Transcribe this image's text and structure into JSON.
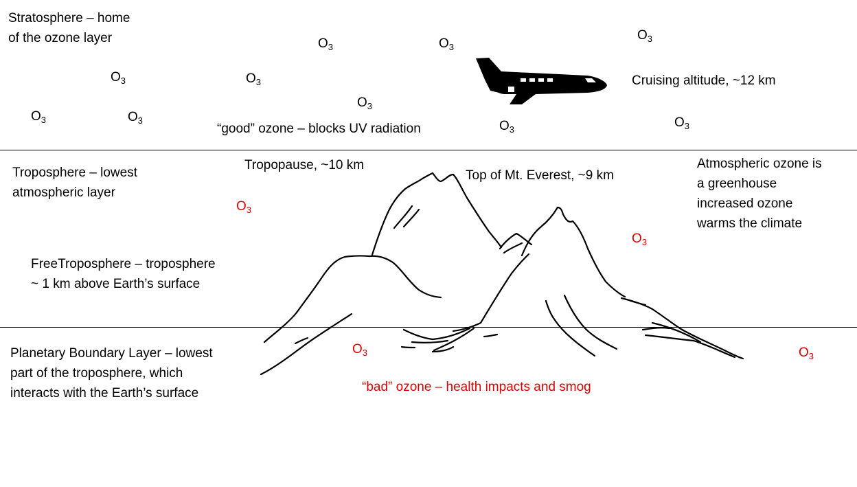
{
  "layers": {
    "stratosphere": {
      "line1": "Stratosphere – home",
      "line2": "of the ozone layer"
    },
    "troposphere": {
      "line1": "Troposphere – lowest",
      "line2": "atmospheric layer"
    },
    "free_troposphere": {
      "line1": "FreeTroposphere – troposphere",
      "line2": "~ 1 km above Earth’s surface"
    },
    "boundary_layer": {
      "line1": "Planetary Boundary Layer – lowest",
      "line2": "part of the troposphere, which",
      "line3": "interacts with the Earth’s surface"
    }
  },
  "annotations": {
    "good_ozone": "“good” ozone – blocks UV radiation",
    "bad_ozone": "“bad” ozone – health impacts and smog",
    "cruising_altitude": "Cruising altitude, ~12 km",
    "tropopause": "Tropopause, ~10 km",
    "everest": "Top of Mt. Everest, ~9 km",
    "greenhouse": {
      "line1": "Atmospheric ozone is",
      "line2": "a greenhouse",
      "line3": "increased ozone",
      "line4": "warms the climate"
    }
  },
  "ozone": {
    "symbol": "O",
    "subscript": "3"
  },
  "colors": {
    "bad_ozone": "#e00000",
    "good_ozone": "#000000",
    "lines": "#000000"
  },
  "icons": {
    "airplane": "airplane-icon",
    "mountains": "mountains-icon"
  }
}
